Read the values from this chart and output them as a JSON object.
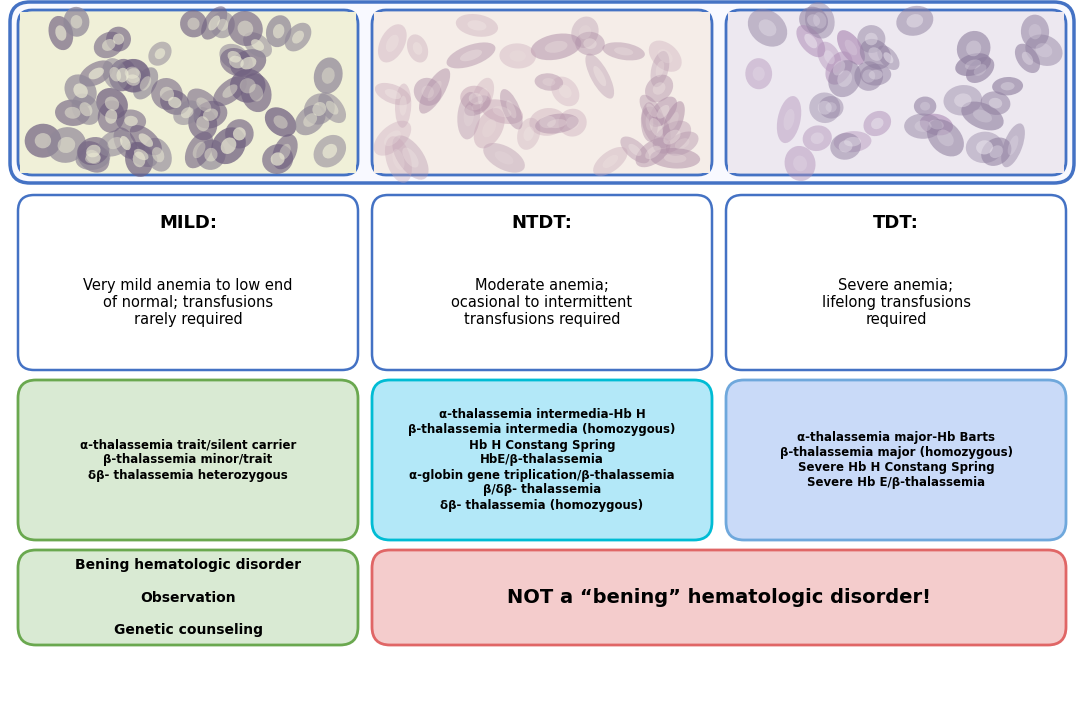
{
  "bg_color": "#ffffff",
  "fig_width": 10.84,
  "fig_height": 7.07,
  "mild_title": "MILD:",
  "ntdt_title": "NTDT:",
  "tdt_title": "TDT:",
  "mild_text": "Very mild anemia to low end\nof normal; transfusions\nrarely required",
  "ntdt_text": "Moderate anemia;\nocasional to intermittent\ntransfusions required",
  "tdt_text": "Severe anemia;\nlifelong transfusions\nrequired",
  "mild_conditions": "α-thalassemia trait/silent carrier\nβ-thalassemia minor/trait\nδβ- thalassemia heterozygous",
  "ntdt_conditions": "α-thalassemia intermedia-Hb H\nβ-thalassemia intermedia (homozygous)\nHb H Constang Spring\nHbE/β-thalassemia\nα-globin gene triplication/β-thalassemia\nβ/δβ- thalassemia\nδβ- thalassemia (homozygous)",
  "tdt_conditions": "α-thalassemia major-Hb Barts\nβ-thalassemia major (homozygous)\nSevere Hb H Constang Spring\nSevere Hb E/β-thalassemia",
  "benign_text": "Bening hematologic disorder\n\nObservation\n\nGenetic counseling",
  "not_benign_text": "NOT a “bening” hematologic disorder!",
  "mild_cond_box_color": "#d9ead3",
  "ntdt_cond_box_color": "#b3e8f8",
  "tdt_cond_box_color": "#c9daf8",
  "benign_box_color": "#d9ead3",
  "not_benign_box_color": "#f4cccc",
  "outer_image_box_color": "#4472c4",
  "mild_border_color": "#4472c4",
  "ntdt_border_color": "#4472c4",
  "tdt_border_color": "#4472c4",
  "mild_cond_border_color": "#6aa84f",
  "ntdt_cond_border_color": "#00bcd4",
  "tdt_cond_border_color": "#6fa8dc",
  "benign_border_color": "#6aa84f",
  "not_benign_border_color": "#e06666",
  "img1_bg": "#f0f0d8",
  "img2_bg": "#f5ede8",
  "img3_bg": "#ede8f0",
  "cell1_color": "#7b6b8a",
  "cell2_color": "#c9a8b8",
  "cell3_color": "#9b8aaa"
}
